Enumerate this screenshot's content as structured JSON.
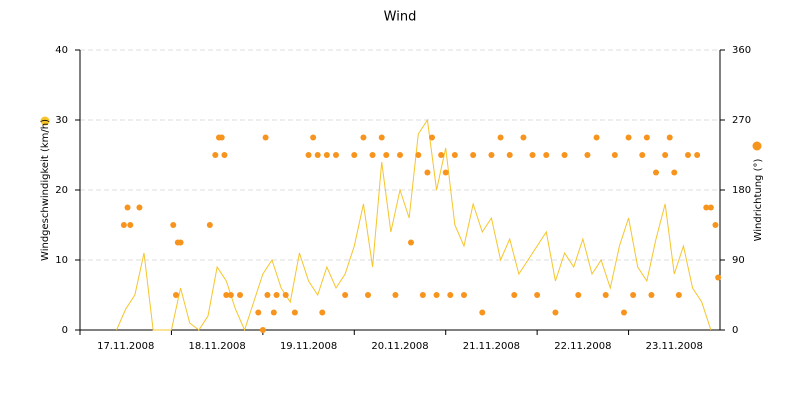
{
  "chart_data": {
    "type": "line-scatter",
    "title": "Wind",
    "ylabel": "Windgeschwindigkeit (km/h)",
    "y2label": "Windrichtung (°)",
    "xlim": [
      0,
      7
    ],
    "xticks": [
      {
        "value": 0,
        "label": "17.11.2008"
      },
      {
        "value": 1,
        "label": "18.11.2008"
      },
      {
        "value": 2,
        "label": "19.11.2008"
      },
      {
        "value": 3,
        "label": "20.11.2008"
      },
      {
        "value": 4,
        "label": "21.11.2008"
      },
      {
        "value": 5,
        "label": "22.11.2008"
      },
      {
        "value": 6,
        "label": "23.11.2008"
      }
    ],
    "ylim": [
      0,
      40
    ],
    "yticks": [
      0,
      10,
      20,
      30,
      40
    ],
    "y2lim": [
      0,
      360
    ],
    "y2ticks": [
      0,
      90,
      180,
      270,
      360
    ],
    "grid": true,
    "series": [
      {
        "type": "line",
        "color": "#f6c52c",
        "x": [
          0.4,
          0.5,
          0.6,
          0.7,
          0.8,
          0.9,
          1.0,
          1.1,
          1.2,
          1.3,
          1.4,
          1.5,
          1.6,
          1.7,
          1.8,
          1.9,
          2.0,
          2.1,
          2.2,
          2.3,
          2.4,
          2.5,
          2.6,
          2.7,
          2.8,
          2.9,
          3.0,
          3.1,
          3.2,
          3.3,
          3.4,
          3.5,
          3.6,
          3.7,
          3.8,
          3.9,
          4.0,
          4.1,
          4.2,
          4.3,
          4.4,
          4.5,
          4.6,
          4.7,
          4.8,
          4.9,
          5.0,
          5.1,
          5.2,
          5.3,
          5.4,
          5.5,
          5.6,
          5.7,
          5.8,
          5.9,
          6.0,
          6.1,
          6.2,
          6.3,
          6.4,
          6.5,
          6.6,
          6.7,
          6.8,
          6.9
        ],
        "values": [
          0,
          3,
          5,
          11,
          0,
          0,
          0,
          6,
          1,
          0,
          2,
          9,
          7,
          3,
          0,
          4,
          8,
          10,
          6,
          4,
          11,
          7,
          5,
          9,
          6,
          8,
          12,
          18,
          9,
          24,
          14,
          20,
          16,
          28,
          30,
          20,
          26,
          15,
          12,
          18,
          14,
          16,
          10,
          13,
          8,
          10,
          12,
          14,
          7,
          11,
          9,
          13,
          8,
          10,
          6,
          12,
          16,
          9,
          7,
          13,
          18,
          8,
          12,
          6,
          4,
          0
        ]
      },
      {
        "type": "scatter",
        "axis": "y2",
        "color": "#f7941d",
        "x": [
          0.48,
          0.52,
          0.55,
          0.65,
          1.02,
          1.05,
          1.07,
          1.1,
          1.42,
          1.48,
          1.52,
          1.55,
          1.58,
          1.6,
          1.65,
          1.75,
          1.95,
          2.0,
          2.03,
          2.05,
          2.12,
          2.15,
          2.25,
          2.35,
          2.5,
          2.55,
          2.6,
          2.65,
          2.7,
          2.8,
          2.9,
          3.0,
          3.1,
          3.15,
          3.2,
          3.3,
          3.35,
          3.45,
          3.5,
          3.62,
          3.7,
          3.75,
          3.8,
          3.85,
          3.9,
          3.95,
          4.0,
          4.05,
          4.1,
          4.2,
          4.3,
          4.4,
          4.5,
          4.6,
          4.7,
          4.75,
          4.85,
          4.95,
          5.0,
          5.1,
          5.2,
          5.3,
          5.45,
          5.55,
          5.65,
          5.75,
          5.85,
          5.95,
          6.0,
          6.05,
          6.15,
          6.2,
          6.25,
          6.3,
          6.4,
          6.45,
          6.5,
          6.55,
          6.65,
          6.75,
          6.85,
          6.9,
          6.95,
          6.98
        ],
        "values": [
          135,
          157.5,
          135,
          157.5,
          135,
          45,
          112.5,
          112.5,
          135,
          225,
          247.5,
          247.5,
          225,
          45,
          45,
          45,
          22.5,
          0,
          247.5,
          45,
          22.5,
          45,
          45,
          22.5,
          225,
          247.5,
          225,
          22.5,
          225,
          225,
          45,
          225,
          247.5,
          45,
          225,
          247.5,
          225,
          45,
          225,
          112.5,
          225,
          45,
          202.5,
          247.5,
          45,
          225,
          202.5,
          45,
          225,
          45,
          225,
          22.5,
          225,
          247.5,
          225,
          45,
          247.5,
          225,
          45,
          225,
          22.5,
          225,
          45,
          225,
          247.5,
          45,
          225,
          22.5,
          247.5,
          45,
          225,
          247.5,
          45,
          202.5,
          225,
          247.5,
          202.5,
          45,
          225,
          225,
          157.5,
          157.5,
          135,
          67.5
        ]
      }
    ]
  }
}
